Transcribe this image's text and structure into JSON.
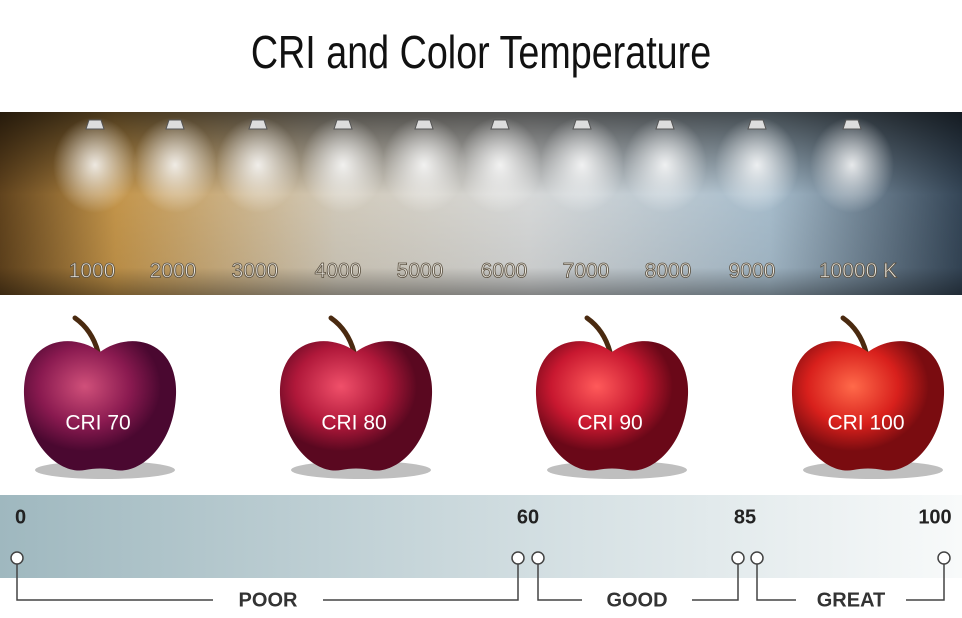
{
  "header": {
    "title": "CRI and Color Temperature"
  },
  "temperatures": {
    "labels": [
      "1000",
      "2000",
      "3000",
      "4000",
      "5000",
      "6000",
      "7000",
      "8000",
      "9000",
      "10000 K"
    ]
  },
  "apples": [
    {
      "label": "CRI 70"
    },
    {
      "label": "CRI 80"
    },
    {
      "label": "CRI 90"
    },
    {
      "label": "CRI 100"
    }
  ],
  "scale": {
    "ticks": [
      "0",
      "60",
      "85",
      "100"
    ],
    "ranges": [
      "POOR",
      "GOOD",
      "GREAT"
    ]
  }
}
